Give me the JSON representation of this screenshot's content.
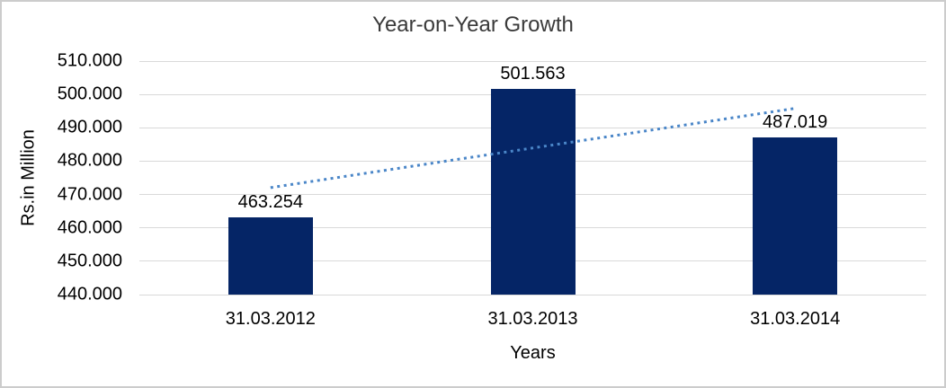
{
  "chart_data": {
    "type": "bar",
    "title": "Year-on-Year Growth",
    "xlabel": "Years",
    "ylabel": "Rs.in Million",
    "categories": [
      "31.03.2012",
      "31.03.2013",
      "31.03.2014"
    ],
    "values": [
      463.254,
      501.563,
      487.019
    ],
    "data_labels": [
      "463.254",
      "501.563",
      "487.019"
    ],
    "ylim": [
      440,
      510
    ],
    "yticks": [
      {
        "value": 440,
        "label": "440.000"
      },
      {
        "value": 450,
        "label": "450.000"
      },
      {
        "value": 460,
        "label": "460.000"
      },
      {
        "value": 470,
        "label": "470.000"
      },
      {
        "value": 480,
        "label": "480.000"
      },
      {
        "value": 490,
        "label": "490.000"
      },
      {
        "value": 500,
        "label": "500.000"
      },
      {
        "value": 510,
        "label": "510.000"
      }
    ],
    "grid": "horizontal",
    "legend": "none",
    "trendline": {
      "type": "linear",
      "style": "dotted"
    },
    "colors": {
      "bar": "#052566",
      "trendline": "#4a86c8",
      "gridline": "#d9d9d9",
      "text": "#000000",
      "title": "#3a3a3a",
      "frame_border": "#cccccc"
    }
  }
}
